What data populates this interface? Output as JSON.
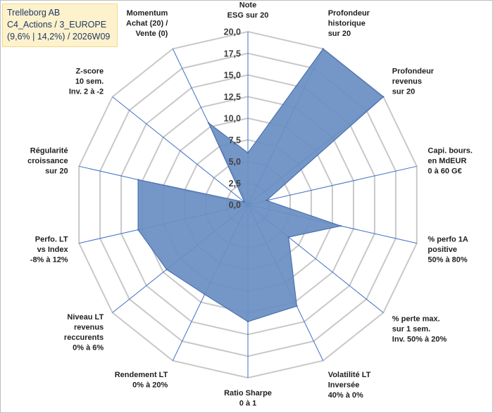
{
  "header": {
    "line1": "Trelleborg AB",
    "line2": "C4_Actions / 3_EUROPE",
    "line3": "(9,6% | 14,2%) / 2026W09"
  },
  "colors": {
    "fill": "#6b8fc3",
    "stroke": "#4a72b0",
    "grid": "#c8c8c8",
    "spoke": "#3f6fc6",
    "title_bg": "#fdf2cc"
  },
  "chart_data": {
    "type": "radar",
    "title": "Trelleborg AB",
    "range": [
      0,
      20
    ],
    "tick_step": 2.5,
    "tick_labels": [
      "0,0",
      "2,5",
      "5,0",
      "7,5",
      "10,0",
      "12,5",
      "15,0",
      "17,5",
      "20,0"
    ],
    "axes": [
      [
        "Note",
        "ESG sur 20"
      ],
      [
        "Profondeur",
        "historique",
        "sur 20"
      ],
      [
        "Profondeur",
        "revenus",
        "sur 20"
      ],
      [
        "Capi. bours.",
        "en MdEUR",
        "0 à 60 G€"
      ],
      [
        "% perfo 1A",
        "positive",
        "50% à 80%"
      ],
      [
        "% perte max.",
        "sur 1 sem.",
        "Inv. 50% à 20%"
      ],
      [
        "Volatilité LT",
        "Inversée",
        "40% à 0%"
      ],
      [
        "Ratio Sharpe",
        "0 à 1"
      ],
      [
        "Rendement LT",
        "0% à 20%"
      ],
      [
        "Niveau LT",
        "revenus",
        "reccurents",
        "0% à 6%"
      ],
      [
        "Perfo. LT",
        "vs Index",
        "-8% à 12%"
      ],
      [
        "Régularité",
        "croissance",
        "sur 20"
      ],
      [
        "Z-score",
        "10 sem.",
        "Inv. 2 à -2"
      ],
      [
        "Momentum",
        "Achat (20) /",
        "Vente (0)"
      ]
    ],
    "series": [
      {
        "name": "Trelleborg AB",
        "values": [
          6.0,
          20.0,
          20.0,
          2.2,
          11.0,
          6.0,
          13.0,
          13.5,
          11.5,
          12.0,
          13.0,
          13.0,
          0.5,
          10.5
        ]
      }
    ]
  }
}
